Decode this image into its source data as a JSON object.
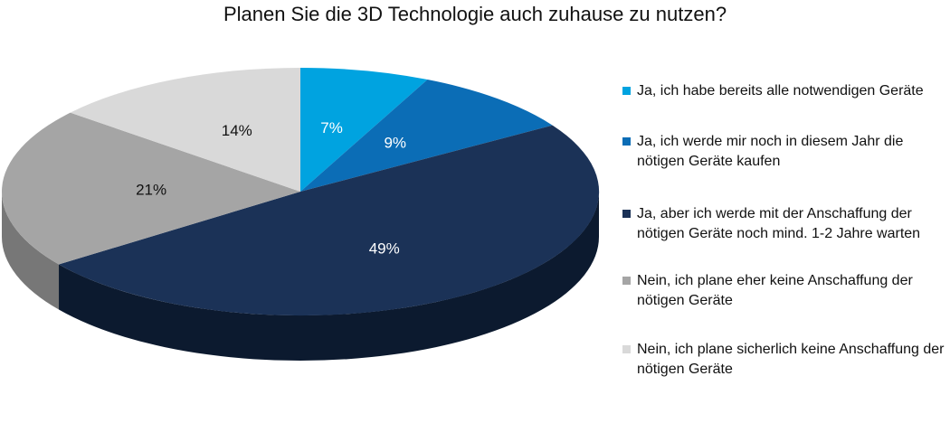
{
  "chart_data": {
    "type": "pie",
    "title": "Planen Sie die 3D Technologie auch zuhause zu nutzen?",
    "slices": [
      {
        "label": "Ja, ich habe bereits alle notwendigen Geräte",
        "value": 7,
        "value_label": "7%",
        "color": "#00a3e0",
        "side": "#0079aa",
        "label_color": "#ffffff"
      },
      {
        "label": "Ja, ich werde mir noch in diesem Jahr die nötigen Geräte kaufen",
        "value": 9,
        "value_label": "9%",
        "color": "#0b6db6",
        "side": "#064b80",
        "label_color": "#ffffff"
      },
      {
        "label": "Ja, aber ich werde mit der Anschaffung der nötigen Geräte noch mind. 1-2 Jahre warten",
        "value": 49,
        "value_label": "49%",
        "color": "#1b3257",
        "side": "#0c1a2f",
        "label_color": "#ffffff"
      },
      {
        "label": "Nein, ich plane eher keine Anschaffung der nötigen Geräte",
        "value": 21,
        "value_label": "21%",
        "color": "#a5a5a5",
        "side": "#777777",
        "label_color": "#111111"
      },
      {
        "label": "Nein, ich plane sicherlich keine Anschaffung der nötigen Geräte",
        "value": 14,
        "value_label": "14%",
        "color": "#d9d9d9",
        "side": "#a9a9a9",
        "label_color": "#111111"
      }
    ],
    "legend_position": "right"
  }
}
